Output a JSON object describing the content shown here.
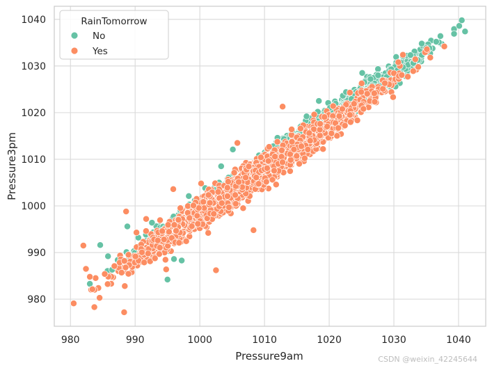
{
  "chart_data": {
    "type": "scatter",
    "xlabel": "Pressure9am",
    "ylabel": "Pressure3pm",
    "xlim": [
      977.5,
      1044.2
    ],
    "ylim": [
      974.2,
      1042.8
    ],
    "x_ticks": [
      980,
      990,
      1000,
      1010,
      1020,
      1030,
      1040
    ],
    "y_ticks": [
      980,
      990,
      1000,
      1010,
      1020,
      1030,
      1040
    ],
    "grid": true,
    "legend": {
      "title": "RainTomorrow",
      "placement": "top-left",
      "entries": [
        {
          "label": "No",
          "color": "#66c2a5"
        },
        {
          "label": "Yes",
          "color": "#fc8d62"
        }
      ]
    },
    "series": [
      {
        "name": "No",
        "color": "#66c2a5",
        "trend": {
          "x_range": [
            983,
            1041
          ],
          "slope": 0.97,
          "intercept_at_1000": 999.3,
          "spread": 1.8
        },
        "points": [
          [
            983,
            983.3
          ],
          [
            984.6,
            991.6
          ],
          [
            985.8,
            989.2
          ],
          [
            987.3,
            988.4
          ],
          [
            988.8,
            995.6
          ],
          [
            990.5,
            993.2
          ],
          [
            992.6,
            996.4
          ],
          [
            994.2,
            994.8
          ],
          [
            995,
            984.2
          ],
          [
            995.2,
            990.3
          ],
          [
            996,
            988.6
          ],
          [
            996.7,
            995.2
          ],
          [
            997.2,
            988.3
          ],
          [
            998.3,
            1002.1
          ],
          [
            999.8,
            1001.3
          ],
          [
            1001.7,
            999.6
          ],
          [
            1003.3,
            1008.5
          ],
          [
            1005.1,
            1012.1
          ],
          [
            1007.4,
            1005.8
          ],
          [
            1009.7,
            1009.2
          ],
          [
            1012,
            1014.6
          ],
          [
            1014.9,
            1013.2
          ],
          [
            1016.5,
            1019.2
          ],
          [
            1018.4,
            1022.5
          ],
          [
            1020.2,
            1018.3
          ],
          [
            1022.6,
            1024.4
          ],
          [
            1025.1,
            1028.5
          ],
          [
            1027.4,
            1025.6
          ],
          [
            1029.6,
            1029.3
          ],
          [
            1031.4,
            1032.1
          ],
          [
            1033,
            1030.6
          ],
          [
            1034.3,
            1034.8
          ],
          [
            1035.5,
            1033.8
          ],
          [
            1037.2,
            1036.4
          ],
          [
            1039.3,
            1036.9
          ],
          [
            1040.1,
            1038.6
          ],
          [
            1040.5,
            1039.8
          ],
          [
            1041,
            1037.4
          ]
        ]
      },
      {
        "name": "Yes",
        "color": "#fc8d62",
        "trend": {
          "x_range": [
            980.5,
            1038
          ],
          "slope": 0.95,
          "intercept_at_1000": 998.2,
          "spread": 2.2
        },
        "points": [
          [
            980.5,
            979.1
          ],
          [
            982,
            991.5
          ],
          [
            982.4,
            986.5
          ],
          [
            983,
            984.8
          ],
          [
            983.7,
            978.3
          ],
          [
            984.5,
            980.3
          ],
          [
            985.3,
            985.4
          ],
          [
            986.8,
            987.1
          ],
          [
            987.9,
            985.7
          ],
          [
            988.3,
            977.2
          ],
          [
            988.4,
            982.8
          ],
          [
            988.6,
            998.8
          ],
          [
            990.2,
            994.3
          ],
          [
            991.7,
            997.2
          ],
          [
            993.5,
            992.6
          ],
          [
            994.8,
            986.4
          ],
          [
            995.9,
            1003.6
          ],
          [
            996.8,
            992.1
          ],
          [
            998.4,
            997.4
          ],
          [
            1000.2,
            1004.8
          ],
          [
            1001.3,
            994.2
          ],
          [
            1002.5,
            986.2
          ],
          [
            1003.4,
            1000.6
          ],
          [
            1005.8,
            1013.5
          ],
          [
            1006.7,
            999.5
          ],
          [
            1008.3,
            994.8
          ],
          [
            1010.4,
            1008.1
          ],
          [
            1011.8,
            1004.6
          ],
          [
            1012.8,
            1021.3
          ],
          [
            1014.2,
            1016.4
          ],
          [
            1016.7,
            1012.1
          ],
          [
            1018.6,
            1017.6
          ],
          [
            1021.4,
            1016.7
          ],
          [
            1023.2,
            1024.3
          ],
          [
            1025.3,
            1020.8
          ],
          [
            1028.6,
            1026.3
          ],
          [
            1031.4,
            1032.4
          ],
          [
            1035.1,
            1033.6
          ],
          [
            1037.8,
            1034.2
          ]
        ]
      }
    ]
  },
  "watermark": "CSDN @weixin_42245644"
}
